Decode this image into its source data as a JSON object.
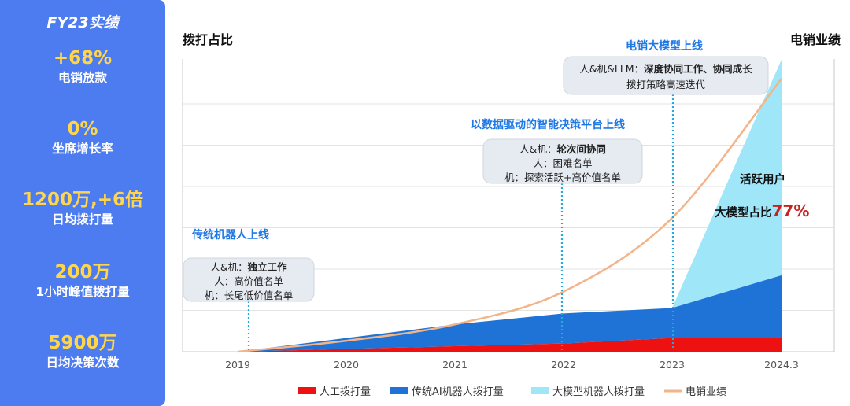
{
  "sidebar": {
    "title": "FY23实绩",
    "kpis": [
      {
        "value": "+68%",
        "label": "电销放款"
      },
      {
        "value": "0%",
        "label": "坐席增长率"
      },
      {
        "value": "1200万,+6倍",
        "label": "日均拨打量"
      },
      {
        "value": "200万",
        "label": "1小时峰值拨打量"
      },
      {
        "value": "5900万",
        "label": "日均决策次数"
      }
    ]
  },
  "colors": {
    "sidebar_bg": "#4d7cf0",
    "kpi_value": "#ffd64a",
    "milestone_title": "#1e78e6",
    "manual": "#ee1111",
    "traditional": "#1f73d6",
    "llm": "#9ee6f8",
    "sales_line": "#f2b488",
    "highlight_red": "#cc1f1f"
  },
  "chart_data": {
    "type": "area",
    "left_axis_label": "拨打占比",
    "right_axis_label": "电销业绩",
    "x": [
      "2019",
      "2020",
      "2021",
      "2022",
      "2023",
      "2024.3"
    ],
    "grid": "horizontal",
    "series": [
      {
        "name": "人工拨打量",
        "type": "area",
        "values": [
          0,
          0.01,
          0.02,
          0.03,
          0.05,
          0.05
        ]
      },
      {
        "name": "传统AI机器人拨打量",
        "type": "area",
        "values": [
          0,
          0.04,
          0.08,
          0.11,
          0.11,
          0.23
        ]
      },
      {
        "name": "大模型机器人拨打量",
        "type": "area",
        "values": [
          0,
          0,
          0,
          0,
          0,
          0.79
        ]
      },
      {
        "name": "电销业绩",
        "type": "line",
        "values": [
          0,
          0.04,
          0.1,
          0.22,
          0.49,
          1.0
        ]
      }
    ],
    "milestones": [
      {
        "title": "传统机器人上线",
        "x": "2019",
        "lines": [
          {
            "prefix": "人&机：",
            "bold": "独立工作"
          },
          {
            "prefix": "人：",
            "bold": "",
            "rest": "高价值名单"
          },
          {
            "prefix": "机：",
            "bold": "",
            "rest": "长尾低价值名单"
          }
        ]
      },
      {
        "title": "以数据驱动的智能决策平台上线",
        "x": "2022",
        "lines": [
          {
            "prefix": "人&机：",
            "bold": "轮次间协同"
          },
          {
            "prefix": "人：",
            "bold": "",
            "rest": "困难名单"
          },
          {
            "prefix": "机：",
            "bold": "",
            "rest": "探索活跃+高价值名单"
          }
        ]
      },
      {
        "title": "电销大模型上线",
        "x": "2023",
        "lines": [
          {
            "prefix": "人&机&LLM：",
            "bold": "深度协同工作、协同成长"
          },
          {
            "prefix": "",
            "bold": "",
            "rest": "拨打策略高速迭代"
          }
        ]
      }
    ],
    "annotation": {
      "line1": "活跃用户",
      "line2_prefix": "大模型占比",
      "line2_value": "77%"
    }
  }
}
